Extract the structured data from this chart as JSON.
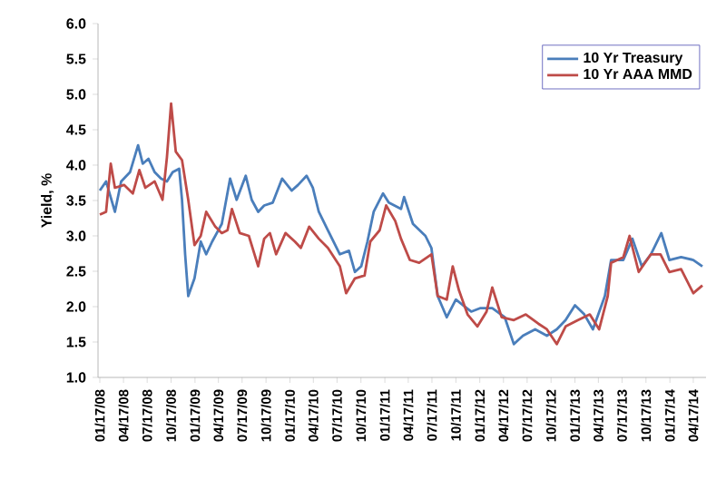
{
  "chart_data": {
    "type": "line",
    "ylabel": "Yield, %",
    "xlim": [
      "2008-01-10",
      "2014-06-05"
    ],
    "xticks": [
      {
        "value": "2008-01-17",
        "label": "01/17/08"
      },
      {
        "value": "2008-04-17",
        "label": "04/17/08"
      },
      {
        "value": "2008-07-17",
        "label": "07/17/08"
      },
      {
        "value": "2008-10-17",
        "label": "10/17/08"
      },
      {
        "value": "2009-01-17",
        "label": "01/17/09"
      },
      {
        "value": "2009-04-17",
        "label": "04/17/09"
      },
      {
        "value": "2009-07-17",
        "label": "07/17/09"
      },
      {
        "value": "2009-10-17",
        "label": "10/17/09"
      },
      {
        "value": "2010-01-17",
        "label": "01/17/10"
      },
      {
        "value": "2010-04-17",
        "label": "04/17/10"
      },
      {
        "value": "2010-07-17",
        "label": "07/17/10"
      },
      {
        "value": "2010-10-17",
        "label": "10/17/10"
      },
      {
        "value": "2011-01-17",
        "label": "01/17/11"
      },
      {
        "value": "2011-04-17",
        "label": "04/17/11"
      },
      {
        "value": "2011-07-17",
        "label": "07/17/11"
      },
      {
        "value": "2011-10-17",
        "label": "10/17/11"
      },
      {
        "value": "2012-01-17",
        "label": "01/17/12"
      },
      {
        "value": "2012-04-17",
        "label": "04/17/12"
      },
      {
        "value": "2012-07-17",
        "label": "07/17/12"
      },
      {
        "value": "2012-10-17",
        "label": "10/17/12"
      },
      {
        "value": "2013-01-17",
        "label": "01/17/13"
      },
      {
        "value": "2013-04-17",
        "label": "04/17/13"
      },
      {
        "value": "2013-07-17",
        "label": "07/17/13"
      },
      {
        "value": "2013-10-17",
        "label": "10/17/13"
      },
      {
        "value": "2014-01-17",
        "label": "01/17/14"
      },
      {
        "value": "2014-04-17",
        "label": "04/17/14"
      }
    ],
    "ylim": [
      1.0,
      6.0
    ],
    "yticks": [
      {
        "value": 1.0,
        "label": "1.0"
      },
      {
        "value": 1.5,
        "label": "1.5"
      },
      {
        "value": 2.0,
        "label": "2.0"
      },
      {
        "value": 2.5,
        "label": "2.5"
      },
      {
        "value": 3.0,
        "label": "3.0"
      },
      {
        "value": 3.5,
        "label": "3.5"
      },
      {
        "value": 4.0,
        "label": "4.0"
      },
      {
        "value": 4.5,
        "label": "4.5"
      },
      {
        "value": 5.0,
        "label": "5.0"
      },
      {
        "value": 5.5,
        "label": "5.5"
      },
      {
        "value": 6.0,
        "label": "6.0"
      }
    ],
    "legend": "top right",
    "marker": "none",
    "line_style": "solid",
    "series": [
      {
        "name": "10 Yr Treasury",
        "color": "#4a7ebb",
        "x": [
          "2008-01-17",
          "2008-02-10",
          "2008-03-15",
          "2008-04-08",
          "2008-05-12",
          "2008-06-12",
          "2008-06-30",
          "2008-07-22",
          "2008-08-15",
          "2008-09-08",
          "2008-10-01",
          "2008-10-23",
          "2008-11-17",
          "2008-11-28",
          "2008-12-10",
          "2008-12-22",
          "2009-01-15",
          "2009-02-08",
          "2009-03-01",
          "2009-03-24",
          "2009-04-30",
          "2009-06-01",
          "2009-06-26",
          "2009-07-31",
          "2009-08-23",
          "2009-09-17",
          "2009-10-10",
          "2009-11-12",
          "2009-12-18",
          "2010-01-24",
          "2010-02-17",
          "2010-03-22",
          "2010-04-15",
          "2010-05-08",
          "2010-06-12",
          "2010-07-28",
          "2010-09-01",
          "2010-09-24",
          "2010-10-18",
          "2010-11-11",
          "2010-12-05",
          "2011-01-10",
          "2011-02-01",
          "2011-03-20",
          "2011-04-01",
          "2011-05-05",
          "2011-06-22",
          "2011-07-15",
          "2011-08-08",
          "2011-09-12",
          "2011-10-17",
          "2011-12-15",
          "2012-01-20",
          "2012-03-05",
          "2012-04-22",
          "2012-05-27",
          "2012-07-01",
          "2012-08-17",
          "2012-10-01",
          "2012-11-08",
          "2012-12-12",
          "2013-01-17",
          "2013-02-22",
          "2013-03-27",
          "2013-05-12",
          "2013-06-05",
          "2013-07-22",
          "2013-08-26",
          "2013-10-01",
          "2013-11-05",
          "2013-12-15",
          "2014-01-15",
          "2014-03-01",
          "2014-04-17",
          "2014-05-22"
        ],
        "values": [
          3.64,
          3.77,
          3.34,
          3.77,
          3.9,
          4.28,
          4.02,
          4.09,
          3.9,
          3.81,
          3.77,
          3.9,
          3.95,
          3.51,
          2.74,
          2.15,
          2.4,
          2.92,
          2.74,
          2.92,
          3.17,
          3.81,
          3.51,
          3.85,
          3.51,
          3.34,
          3.43,
          3.47,
          3.81,
          3.64,
          3.72,
          3.85,
          3.68,
          3.34,
          3.08,
          2.74,
          2.79,
          2.49,
          2.57,
          2.92,
          3.34,
          3.6,
          3.47,
          3.38,
          3.55,
          3.17,
          3.0,
          2.83,
          2.15,
          1.85,
          2.1,
          1.93,
          1.98,
          1.98,
          1.85,
          1.47,
          1.59,
          1.68,
          1.59,
          1.68,
          1.81,
          2.02,
          1.89,
          1.68,
          2.15,
          2.66,
          2.66,
          2.96,
          2.57,
          2.74,
          3.04,
          2.66,
          2.7,
          2.66,
          2.57
        ]
      },
      {
        "name": "10 Yr AAA MMD",
        "color": "#be4b48",
        "x": [
          "2008-01-17",
          "2008-02-10",
          "2008-02-28",
          "2008-03-15",
          "2008-04-19",
          "2008-05-23",
          "2008-06-17",
          "2008-07-10",
          "2008-08-15",
          "2008-09-14",
          "2008-10-01",
          "2008-10-17",
          "2008-11-04",
          "2008-11-28",
          "2008-12-22",
          "2009-01-15",
          "2009-02-08",
          "2009-03-01",
          "2009-04-05",
          "2009-04-30",
          "2009-05-22",
          "2009-06-08",
          "2009-07-08",
          "2009-08-12",
          "2009-09-17",
          "2009-10-10",
          "2009-11-01",
          "2009-11-25",
          "2009-12-31",
          "2010-02-05",
          "2010-02-28",
          "2010-04-01",
          "2010-05-08",
          "2010-06-12",
          "2010-07-28",
          "2010-08-21",
          "2010-09-24",
          "2010-10-31",
          "2010-11-22",
          "2010-12-28",
          "2011-01-22",
          "2011-02-26",
          "2011-03-20",
          "2011-04-23",
          "2011-05-29",
          "2011-07-15",
          "2011-08-08",
          "2011-09-12",
          "2011-10-05",
          "2011-10-29",
          "2011-12-01",
          "2012-01-08",
          "2012-02-12",
          "2012-03-05",
          "2012-04-10",
          "2012-05-27",
          "2012-07-12",
          "2012-08-29",
          "2012-10-01",
          "2012-11-08",
          "2012-12-12",
          "2013-01-29",
          "2013-03-15",
          "2013-04-20",
          "2013-05-23",
          "2013-06-05",
          "2013-07-22",
          "2013-08-15",
          "2013-09-19",
          "2013-11-05",
          "2013-12-12",
          "2014-01-15",
          "2014-03-01",
          "2014-04-17",
          "2014-05-22"
        ],
        "values": [
          3.3,
          3.34,
          4.02,
          3.68,
          3.72,
          3.6,
          3.93,
          3.68,
          3.77,
          3.51,
          4.11,
          4.87,
          4.19,
          4.07,
          3.51,
          2.87,
          3.0,
          3.34,
          3.13,
          3.04,
          3.08,
          3.38,
          3.04,
          3.0,
          2.57,
          2.96,
          3.04,
          2.74,
          3.04,
          2.92,
          2.83,
          3.13,
          2.96,
          2.83,
          2.57,
          2.19,
          2.4,
          2.44,
          2.92,
          3.08,
          3.43,
          3.21,
          2.96,
          2.66,
          2.62,
          2.74,
          2.15,
          2.1,
          2.57,
          2.23,
          1.89,
          1.72,
          1.93,
          2.27,
          1.85,
          1.81,
          1.89,
          1.76,
          1.68,
          1.47,
          1.72,
          1.81,
          1.89,
          1.68,
          2.15,
          2.62,
          2.7,
          3.0,
          2.49,
          2.74,
          2.74,
          2.49,
          2.53,
          2.19,
          2.3
        ]
      }
    ]
  }
}
